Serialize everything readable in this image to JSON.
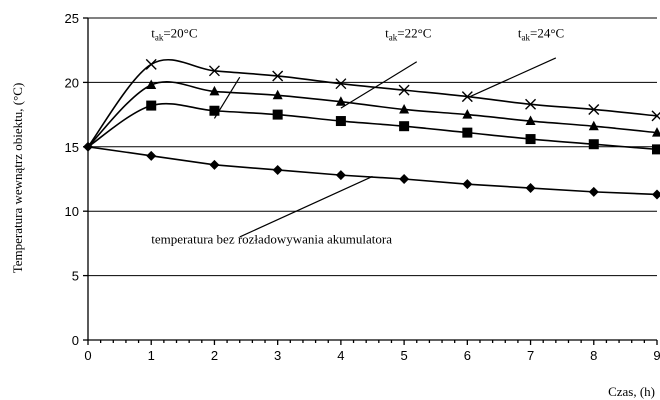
{
  "chart_data": {
    "type": "line",
    "xlabel": "Czas, (h)",
    "ylabel": "Temperatura wewnątrz obiektu, (°C)",
    "xlim": [
      0,
      9
    ],
    "ylim": [
      0,
      25
    ],
    "x_ticks": [
      0,
      1,
      2,
      3,
      4,
      5,
      6,
      7,
      8,
      9
    ],
    "y_ticks": [
      0,
      5,
      10,
      15,
      20,
      25
    ],
    "grid": "horizontal",
    "x": [
      0,
      1,
      2,
      3,
      4,
      5,
      6,
      7,
      8,
      9
    ],
    "series": [
      {
        "marker": "cross",
        "values": [
          15,
          21.4,
          20.9,
          20.5,
          19.9,
          19.4,
          18.9,
          18.3,
          17.9,
          17.4
        ],
        "label": {
          "pre": "t",
          "sub": "ak",
          "post": "=24°C"
        }
      },
      {
        "marker": "triangle",
        "values": [
          15,
          19.8,
          19.3,
          19.0,
          18.5,
          17.9,
          17.5,
          17.0,
          16.6,
          16.1
        ],
        "label": {
          "pre": "t",
          "sub": "ak",
          "post": "=22°C"
        }
      },
      {
        "marker": "square",
        "values": [
          15,
          18.2,
          17.8,
          17.5,
          17.0,
          16.6,
          16.1,
          15.6,
          15.2,
          14.8
        ],
        "label": {
          "pre": "t",
          "sub": "ak",
          "post": "=20°C"
        }
      },
      {
        "marker": "diamond",
        "values": [
          15,
          14.3,
          13.6,
          13.2,
          12.8,
          12.5,
          12.1,
          11.8,
          11.5,
          11.3
        ],
        "label": {
          "pre": "",
          "sub": "",
          "post": "temperatura bez rozładowywania akumulatora"
        }
      }
    ]
  }
}
